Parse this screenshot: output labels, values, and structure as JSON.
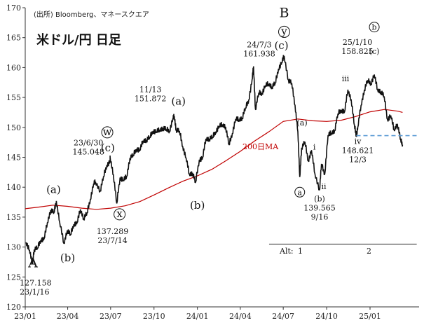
{
  "source": "(出所) Bloomberg、マネースクエア",
  "title": "米ドル/円 日足",
  "ma_label": "200日MA",
  "alt_label": "Alt:",
  "alt_1": "1",
  "alt_2": "2",
  "colors": {
    "price": "#111111",
    "ma": "#c00000",
    "support": "#5b9bd5",
    "axis": "#333333"
  },
  "chart_data": {
    "type": "line",
    "y_range": [
      120,
      170
    ],
    "y_ticks": [
      120,
      125,
      130,
      135,
      140,
      145,
      150,
      155,
      160,
      165,
      170
    ],
    "x_range": [
      "2023-01-01",
      "2025-04-15"
    ],
    "x_ticks": [
      {
        "date": "2023-01-01",
        "label": "23/01"
      },
      {
        "date": "2023-04-01",
        "label": "23/04"
      },
      {
        "date": "2023-07-01",
        "label": "23/07"
      },
      {
        "date": "2023-10-01",
        "label": "23/10"
      },
      {
        "date": "2024-01-01",
        "label": "24/01"
      },
      {
        "date": "2024-04-01",
        "label": "24/04"
      },
      {
        "date": "2024-07-01",
        "label": "24/07"
      },
      {
        "date": "2024-10-01",
        "label": "24/10"
      },
      {
        "date": "2025-01-01",
        "label": "25/01"
      }
    ],
    "price_series": [
      [
        "2023-01-03",
        130.8
      ],
      [
        "2023-01-10",
        129.5
      ],
      [
        "2023-01-16",
        127.2
      ],
      [
        "2023-01-20",
        129.6
      ],
      [
        "2023-01-27",
        129.9
      ],
      [
        "2023-02-03",
        131.2
      ],
      [
        "2023-02-10",
        131.4
      ],
      [
        "2023-02-17",
        134.1
      ],
      [
        "2023-02-24",
        136.2
      ],
      [
        "2023-03-03",
        135.8
      ],
      [
        "2023-03-08",
        137.7
      ],
      [
        "2023-03-15",
        134.2
      ],
      [
        "2023-03-24",
        130.6
      ],
      [
        "2023-03-31",
        132.8
      ],
      [
        "2023-04-07",
        132.1
      ],
      [
        "2023-04-14",
        133.8
      ],
      [
        "2023-04-21",
        134.1
      ],
      [
        "2023-04-28",
        136.3
      ],
      [
        "2023-05-05",
        134.8
      ],
      [
        "2023-05-12",
        135.7
      ],
      [
        "2023-05-19",
        138.0
      ],
      [
        "2023-05-26",
        140.6
      ],
      [
        "2023-05-30",
        140.9
      ],
      [
        "2023-06-09",
        139.4
      ],
      [
        "2023-06-16",
        141.8
      ],
      [
        "2023-06-23",
        143.7
      ],
      [
        "2023-06-30",
        144.3
      ],
      [
        "2023-06-30",
        145.048
      ],
      [
        "2023-07-07",
        142.1
      ],
      [
        "2023-07-14",
        137.289
      ],
      [
        "2023-07-21",
        141.6
      ],
      [
        "2023-07-28",
        141.2
      ],
      [
        "2023-08-04",
        141.8
      ],
      [
        "2023-08-11",
        144.9
      ],
      [
        "2023-08-18",
        145.4
      ],
      [
        "2023-08-25",
        146.4
      ],
      [
        "2023-09-01",
        146.2
      ],
      [
        "2023-09-08",
        147.8
      ],
      [
        "2023-09-15",
        147.9
      ],
      [
        "2023-09-22",
        148.4
      ],
      [
        "2023-09-29",
        149.4
      ],
      [
        "2023-10-06",
        149.3
      ],
      [
        "2023-10-13",
        149.6
      ],
      [
        "2023-10-20",
        149.9
      ],
      [
        "2023-10-27",
        149.7
      ],
      [
        "2023-11-03",
        149.4
      ],
      [
        "2023-11-10",
        151.5
      ],
      [
        "2023-11-13",
        151.872
      ],
      [
        "2023-11-17",
        149.6
      ],
      [
        "2023-11-24",
        149.4
      ],
      [
        "2023-12-01",
        146.8
      ],
      [
        "2023-12-08",
        144.9
      ],
      [
        "2023-12-15",
        142.2
      ],
      [
        "2023-12-22",
        142.4
      ],
      [
        "2023-12-28",
        140.8
      ],
      [
        "2024-01-05",
        144.6
      ],
      [
        "2024-01-12",
        144.9
      ],
      [
        "2024-01-19",
        148.1
      ],
      [
        "2024-01-26",
        148.1
      ],
      [
        "2024-02-02",
        148.4
      ],
      [
        "2024-02-09",
        149.3
      ],
      [
        "2024-02-16",
        150.2
      ],
      [
        "2024-02-23",
        150.5
      ],
      [
        "2024-03-01",
        150.1
      ],
      [
        "2024-03-08",
        147.1
      ],
      [
        "2024-03-15",
        149.0
      ],
      [
        "2024-03-22",
        151.4
      ],
      [
        "2024-03-29",
        151.3
      ],
      [
        "2024-04-05",
        151.6
      ],
      [
        "2024-04-12",
        153.3
      ],
      [
        "2024-04-19",
        154.6
      ],
      [
        "2024-04-26",
        158.0
      ],
      [
        "2024-04-29",
        160.2
      ],
      [
        "2024-05-03",
        153.0
      ],
      [
        "2024-05-10",
        155.8
      ],
      [
        "2024-05-17",
        155.7
      ],
      [
        "2024-05-24",
        157.0
      ],
      [
        "2024-05-31",
        157.3
      ],
      [
        "2024-06-07",
        156.8
      ],
      [
        "2024-06-14",
        157.4
      ],
      [
        "2024-06-21",
        159.8
      ],
      [
        "2024-06-28",
        160.9
      ],
      [
        "2024-07-03",
        161.938
      ],
      [
        "2024-07-12",
        157.9
      ],
      [
        "2024-07-19",
        157.4
      ],
      [
        "2024-07-26",
        153.7
      ],
      [
        "2024-08-01",
        149.3
      ],
      [
        "2024-08-05",
        141.7
      ],
      [
        "2024-08-09",
        146.6
      ],
      [
        "2024-08-16",
        147.6
      ],
      [
        "2024-08-23",
        144.4
      ],
      [
        "2024-08-30",
        146.2
      ],
      [
        "2024-09-06",
        142.3
      ],
      [
        "2024-09-16",
        139.565
      ],
      [
        "2024-09-20",
        143.9
      ],
      [
        "2024-09-27",
        142.2
      ],
      [
        "2024-10-04",
        148.7
      ],
      [
        "2024-10-11",
        149.1
      ],
      [
        "2024-10-18",
        149.5
      ],
      [
        "2024-10-25",
        152.3
      ],
      [
        "2024-11-01",
        152.9
      ],
      [
        "2024-11-08",
        152.6
      ],
      [
        "2024-11-15",
        156.3
      ],
      [
        "2024-11-22",
        154.7
      ],
      [
        "2024-11-29",
        150.3
      ],
      [
        "2024-12-03",
        148.621
      ],
      [
        "2024-12-06",
        150.0
      ],
      [
        "2024-12-13",
        153.7
      ],
      [
        "2024-12-20",
        156.3
      ],
      [
        "2024-12-27",
        157.9
      ],
      [
        "2025-01-03",
        157.3
      ],
      [
        "2025-01-10",
        158.825
      ],
      [
        "2025-01-17",
        156.3
      ],
      [
        "2025-01-24",
        156.0
      ],
      [
        "2025-01-31",
        155.2
      ],
      [
        "2025-02-07",
        151.3
      ],
      [
        "2025-02-14",
        152.0
      ],
      [
        "2025-02-21",
        149.6
      ],
      [
        "2025-02-28",
        150.6
      ],
      [
        "2025-03-07",
        147.9
      ],
      [
        "2025-03-11",
        147.1
      ]
    ],
    "ma_series": [
      [
        "2023-01-01",
        136.4
      ],
      [
        "2023-02-01",
        136.7
      ],
      [
        "2023-03-01",
        137.0
      ],
      [
        "2023-04-01",
        136.8
      ],
      [
        "2023-05-01",
        136.5
      ],
      [
        "2023-06-01",
        136.3
      ],
      [
        "2023-07-01",
        136.5
      ],
      [
        "2023-08-01",
        136.9
      ],
      [
        "2023-09-01",
        137.6
      ],
      [
        "2023-10-01",
        138.7
      ],
      [
        "2023-11-01",
        139.9
      ],
      [
        "2023-12-01",
        141.0
      ],
      [
        "2024-01-01",
        141.9
      ],
      [
        "2024-02-01",
        143.0
      ],
      [
        "2024-03-01",
        144.4
      ],
      [
        "2024-04-01",
        146.0
      ],
      [
        "2024-05-01",
        147.7
      ],
      [
        "2024-06-01",
        149.3
      ],
      [
        "2024-07-01",
        151.0
      ],
      [
        "2024-08-01",
        151.4
      ],
      [
        "2024-09-01",
        151.1
      ],
      [
        "2024-10-01",
        151.0
      ],
      [
        "2024-11-01",
        151.2
      ],
      [
        "2024-12-01",
        151.8
      ],
      [
        "2025-01-01",
        152.6
      ],
      [
        "2025-02-01",
        153.0
      ],
      [
        "2025-03-01",
        152.7
      ],
      [
        "2025-03-11",
        152.5
      ]
    ],
    "support_line": {
      "value": 148.621,
      "from": "2024-12-03",
      "to": "2025-04-12"
    },
    "alt_line": {
      "value": 130.5,
      "from": "2024-06-01",
      "to": "2025-04-10"
    },
    "annotations": [
      {
        "date": "2023-01-16",
        "value": 126.6,
        "lines": [
          "A"
        ],
        "size": "huge",
        "anchor": "start",
        "dx": -6
      },
      {
        "date": "2023-01-16",
        "value": 123.6,
        "lines": [
          "127.158",
          "23/1/16"
        ],
        "size": "normal",
        "anchor": "start",
        "dx": -18
      },
      {
        "date": "2023-03-08",
        "value": 139.0,
        "lines": [
          "(a)"
        ],
        "size": "big",
        "anchor": "middle",
        "dx": -4
      },
      {
        "date": "2023-04-01",
        "value": 127.6,
        "lines": [
          "(b)"
        ],
        "size": "big",
        "anchor": "middle",
        "dx": 0
      },
      {
        "date": "2023-06-15",
        "value": 148.7,
        "lines": [
          "w"
        ],
        "size": "big",
        "circle": true,
        "anchor": "middle",
        "dx": 6
      },
      {
        "date": "2023-06-25",
        "value": 146.0,
        "lines": [
          "(c)"
        ],
        "size": "big",
        "anchor": "middle",
        "dx": 0
      },
      {
        "date": "2023-05-15",
        "value": 147.0,
        "lines": [
          "23/6/30",
          "145.048"
        ],
        "size": "normal",
        "anchor": "middle",
        "dx": 0
      },
      {
        "date": "2023-07-20",
        "value": 135.0,
        "lines": [
          "x"
        ],
        "size": "big",
        "circle": true,
        "anchor": "middle",
        "dx": 0
      },
      {
        "date": "2023-07-14",
        "value": 132.2,
        "lines": [
          "137.289",
          "23/7/14"
        ],
        "size": "normal",
        "anchor": "middle",
        "dx": -6
      },
      {
        "date": "2023-11-13",
        "value": 155.9,
        "lines": [
          "11/13",
          "151.872"
        ],
        "size": "normal",
        "anchor": "middle",
        "dx": -34
      },
      {
        "date": "2023-11-13",
        "value": 153.8,
        "lines": [
          "(a)"
        ],
        "size": "big",
        "anchor": "middle",
        "dx": 6
      },
      {
        "date": "2024-01-01",
        "value": 136.4,
        "lines": [
          "(b)"
        ],
        "size": "big",
        "anchor": "middle",
        "dx": 0
      },
      {
        "date": "2024-07-03",
        "value": 168.4,
        "lines": [
          "B"
        ],
        "size": "huge",
        "anchor": "middle",
        "dx": 0
      },
      {
        "date": "2024-07-03",
        "value": 165.5,
        "lines": [
          "y"
        ],
        "size": "big",
        "circle": true,
        "anchor": "middle",
        "dx": 0
      },
      {
        "date": "2024-07-03",
        "value": 163.1,
        "lines": [
          "(c)"
        ],
        "size": "big",
        "anchor": "middle",
        "dx": -4
      },
      {
        "date": "2024-06-01",
        "value": 163.4,
        "lines": [
          "24/7/3",
          "161.938"
        ],
        "size": "normal",
        "anchor": "middle",
        "dx": -14
      },
      {
        "date": "2024-08-05",
        "value": 138.7,
        "lines": [
          "a"
        ],
        "size": "normal",
        "circle": true,
        "anchor": "middle",
        "dx": 0
      },
      {
        "date": "2024-08-10",
        "value": 150.3,
        "lines": [
          "(a)"
        ],
        "size": "small",
        "anchor": "middle",
        "dx": 0
      },
      {
        "date": "2024-09-16",
        "value": 137.6,
        "lines": [
          "(b)",
          "139.565",
          "9/16"
        ],
        "size": "normal",
        "anchor": "middle",
        "dx": 0
      },
      {
        "date": "2024-09-05",
        "value": 146.3,
        "lines": [
          "i"
        ],
        "size": "normal",
        "anchor": "middle",
        "dx": 0
      },
      {
        "date": "2024-09-25",
        "value": 139.7,
        "lines": [
          "ii"
        ],
        "size": "normal",
        "anchor": "middle",
        "dx": 0
      },
      {
        "date": "2024-11-10",
        "value": 157.7,
        "lines": [
          "iii"
        ],
        "size": "normal",
        "anchor": "middle",
        "dx": 0
      },
      {
        "date": "2024-12-03",
        "value": 147.2,
        "lines": [
          "iv",
          "148.621",
          "12/3"
        ],
        "size": "normal",
        "anchor": "middle",
        "dx": 2
      },
      {
        "date": "2025-01-10",
        "value": 166.3,
        "lines": [
          "b"
        ],
        "size": "normal",
        "circle": true,
        "anchor": "middle",
        "dx": 0
      },
      {
        "date": "2025-01-10",
        "value": 163.8,
        "lines": [
          "25/1/10",
          "158.825"
        ],
        "size": "normal",
        "anchor": "middle",
        "dx": -24
      },
      {
        "date": "2025-01-10",
        "value": 162.3,
        "lines": [
          "(c)"
        ],
        "size": "small",
        "anchor": "middle",
        "dx": 0
      }
    ]
  }
}
